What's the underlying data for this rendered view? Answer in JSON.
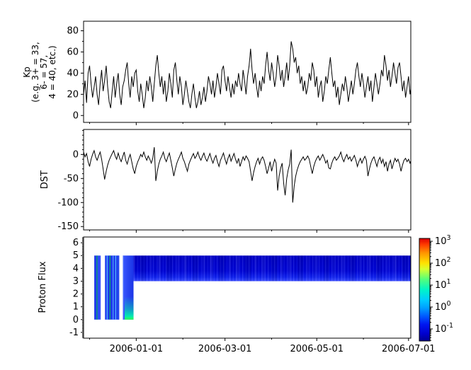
{
  "figure": {
    "background": "#ffffff",
    "frame_color": "#000000",
    "series_color": "#000000",
    "tick_color": "#000000"
  },
  "chart_data": [
    {
      "id": "kp",
      "type": "line",
      "ylabel_lines": [
        "Kp",
        "(e.g. 3+ = 33,",
        "6- = 57,",
        "4 = 40, etc.)"
      ],
      "ylim": [
        -6.5,
        89
      ],
      "yticks": [
        0,
        20,
        40,
        60,
        80
      ],
      "y_minor_step": 10,
      "x_start_date": "2005-11-27",
      "x_domain_days": 217.5,
      "x_major_ticks": [
        {
          "t": 35,
          "label": "2006-01-01"
        },
        {
          "t": 94,
          "label": "2006-03-01"
        },
        {
          "t": 155,
          "label": "2006-05-01"
        },
        {
          "t": 216,
          "label": "2006-07-01"
        }
      ],
      "x_minor_ticks": [
        4,
        66,
        125,
        186
      ],
      "x_labels_visible": false,
      "dt_days": 1,
      "values": [
        20,
        33,
        12,
        40,
        47,
        30,
        17,
        27,
        37,
        20,
        10,
        30,
        43,
        23,
        33,
        47,
        27,
        13,
        7,
        23,
        37,
        17,
        30,
        40,
        20,
        10,
        27,
        33,
        43,
        50,
        30,
        17,
        37,
        27,
        40,
        43,
        23,
        13,
        30,
        20,
        7,
        17,
        33,
        23,
        37,
        27,
        13,
        30,
        47,
        57,
        40,
        27,
        37,
        20,
        33,
        13,
        23,
        40,
        30,
        17,
        43,
        50,
        33,
        20,
        37,
        27,
        10,
        20,
        33,
        23,
        13,
        7,
        20,
        30,
        17,
        7,
        13,
        23,
        10,
        17,
        27,
        13,
        23,
        37,
        30,
        20,
        33,
        17,
        27,
        40,
        30,
        20,
        43,
        47,
        33,
        23,
        37,
        27,
        17,
        30,
        20,
        33,
        27,
        40,
        30,
        23,
        43,
        33,
        20,
        37,
        47,
        63,
        43,
        30,
        40,
        27,
        17,
        33,
        23,
        37,
        30,
        47,
        60,
        43,
        33,
        50,
        40,
        27,
        37,
        57,
        47,
        33,
        43,
        27,
        37,
        50,
        33,
        47,
        70,
        63,
        50,
        55,
        40,
        47,
        30,
        37,
        23,
        33,
        20,
        27,
        40,
        33,
        50,
        43,
        27,
        37,
        17,
        27,
        33,
        13,
        23,
        37,
        30,
        43,
        55,
        40,
        27,
        33,
        17,
        27,
        10,
        20,
        30,
        23,
        37,
        27,
        13,
        23,
        33,
        20,
        30,
        43,
        50,
        37,
        27,
        40,
        30,
        17,
        27,
        37,
        23,
        33,
        13,
        27,
        40,
        30,
        20,
        30,
        43,
        37,
        57,
        47,
        33,
        43,
        27,
        37,
        50,
        40,
        30,
        45,
        50,
        37,
        23,
        33,
        17,
        27,
        37,
        20,
        30,
        10
      ]
    },
    {
      "id": "dst",
      "type": "line",
      "ylabel": "DST",
      "ylim": [
        -157,
        52
      ],
      "yticks": [
        0,
        -50,
        -100,
        -150
      ],
      "y_minor_step": 10,
      "x_start_date": "2005-11-27",
      "x_domain_days": 217.5,
      "x_major_ticks": [
        {
          "t": 35,
          "label": "2006-01-01"
        },
        {
          "t": 94,
          "label": "2006-03-01"
        },
        {
          "t": 155,
          "label": "2006-05-01"
        },
        {
          "t": 216,
          "label": "2006-07-01"
        }
      ],
      "x_minor_ticks": [
        4,
        66,
        125,
        186
      ],
      "x_labels_visible": false,
      "dt_days": 1,
      "values": [
        5,
        -5,
        2,
        -15,
        -25,
        -10,
        0,
        8,
        -5,
        -12,
        -3,
        5,
        -10,
        -30,
        -52,
        -35,
        -22,
        -12,
        -5,
        2,
        8,
        -3,
        -10,
        3,
        -8,
        -15,
        -5,
        5,
        -12,
        -20,
        -8,
        0,
        -15,
        -30,
        -40,
        -25,
        -15,
        -8,
        0,
        -5,
        5,
        -5,
        -12,
        -3,
        -10,
        -18,
        -8,
        15,
        -55,
        -35,
        -20,
        -10,
        -3,
        5,
        -8,
        -15,
        -5,
        3,
        -12,
        -28,
        -45,
        -30,
        -18,
        -10,
        -3,
        5,
        -8,
        -15,
        -25,
        -35,
        -20,
        -12,
        -5,
        2,
        -8,
        -3,
        5,
        -6,
        -12,
        -4,
        3,
        -8,
        -14,
        -6,
        2,
        -10,
        -18,
        -8,
        -2,
        -15,
        -25,
        -12,
        -5,
        3,
        -10,
        -20,
        -8,
        0,
        -14,
        -6,
        2,
        -10,
        -18,
        -8,
        -25,
        -15,
        -5,
        -12,
        -3,
        -8,
        -15,
        -35,
        -55,
        -38,
        -25,
        -15,
        -8,
        -20,
        -10,
        -5,
        -12,
        -25,
        -40,
        -28,
        -15,
        -35,
        -22,
        -10,
        -18,
        -75,
        -45,
        -28,
        -18,
        -60,
        -85,
        -50,
        -32,
        -20,
        10,
        -100,
        -65,
        -45,
        -32,
        -22,
        -15,
        -10,
        -5,
        -12,
        -8,
        -3,
        -10,
        -25,
        -40,
        -25,
        -15,
        -8,
        -3,
        -12,
        -6,
        0,
        -8,
        -18,
        -12,
        -28,
        -30,
        -18,
        -10,
        -5,
        -12,
        -8,
        -3,
        5,
        -8,
        -15,
        -6,
        0,
        -10,
        -5,
        -14,
        -8,
        -2,
        -12,
        -25,
        -15,
        -8,
        -18,
        -10,
        -4,
        -12,
        -45,
        -30,
        -18,
        -10,
        -5,
        -15,
        -25,
        -12,
        -6,
        -18,
        -10,
        -25,
        -15,
        -35,
        -20,
        -12,
        -30,
        -18,
        -8,
        -15,
        -10,
        -20,
        -35,
        -22,
        -12,
        -8,
        -15,
        -10,
        -18,
        -8,
        -12
      ]
    },
    {
      "id": "flux",
      "type": "heatmap",
      "ylabel": "Proton Flux",
      "ylim": [
        -1.45,
        6.45
      ],
      "yticks": [
        -1,
        0,
        1,
        2,
        3,
        4,
        5,
        6
      ],
      "y_minor_step": 0.1,
      "x_start_date": "2005-11-27",
      "x_domain_days": 217.5,
      "x_major_ticks": [
        {
          "t": 35,
          "label": "2006-01-01"
        },
        {
          "t": 94,
          "label": "2006-03-01"
        },
        {
          "t": 155,
          "label": "2006-05-01"
        },
        {
          "t": 216,
          "label": "2006-07-01"
        }
      ],
      "x_minor_ticks": [
        4,
        66,
        125,
        186
      ],
      "x_labels_visible": true,
      "segments": [
        {
          "name": "band-1",
          "t0": 7.1,
          "t1": 11.4,
          "y0": 0,
          "y1": 5,
          "base": {
            "dir": "h",
            "stops": [
              [
                "0",
                "#1b35e8"
              ],
              [
                "0.55",
                "#2a45f5"
              ],
              [
                "1",
                "#3a55ff"
              ]
            ]
          },
          "lines": [
            {
              "t": 8.9,
              "w": 0.45,
              "color": "#00c838"
            }
          ]
        },
        {
          "name": "band-2",
          "t0": 14.2,
          "t1": 23.7,
          "y0": 0,
          "y1": 5,
          "base": {
            "dir": "h",
            "stops": [
              [
                "0",
                "#2a45f0"
              ],
              [
                "0.3",
                "#1b35e8"
              ],
              [
                "0.7",
                "#2440ee"
              ],
              [
                "1",
                "#1b30e0"
              ]
            ]
          },
          "lines": [
            {
              "t": 15.7,
              "w": 0.5,
              "color": "#59c8ff"
            },
            {
              "t": 17.5,
              "w": 0.4,
              "color": "#00c838"
            },
            {
              "t": 19.6,
              "w": 0.55,
              "color": "#4f9bff"
            },
            {
              "t": 21.4,
              "w": 0.5,
              "color": "#57c3ff"
            },
            {
              "t": 22.9,
              "w": 0.35,
              "color": "#2e62ff"
            }
          ]
        },
        {
          "name": "band-3",
          "t0": 26.1,
          "t1": 33.2,
          "y0": 0,
          "y1": 5,
          "base": {
            "dir": "h",
            "stops": [
              [
                "0",
                "#3a58ff"
              ],
              [
                "0.5",
                "#2a45f0"
              ],
              [
                "1",
                "#1b35e8"
              ]
            ]
          },
          "bottom_glow": {
            "t0": 27.3,
            "t1": 33.2,
            "y_top": 1.8,
            "stops": [
              [
                "0",
                "rgba(0,230,170,0)"
              ],
              [
                "0.55",
                "rgba(0,230,170,0.55)"
              ],
              [
                "0.85",
                "#00e8b4"
              ],
              [
                "1",
                "#2cff50"
              ]
            ]
          },
          "lines": [
            {
              "t": 26.4,
              "w": 0.4,
              "color": "#5577ff"
            }
          ]
        },
        {
          "name": "main-band",
          "t0": 33.2,
          "t1": 217.5,
          "y0": 3,
          "y1": 5,
          "base": {
            "dir": "v",
            "stops": [
              [
                "0",
                "#0000c4"
              ],
              [
                "0.6",
                "#0005d6"
              ],
              [
                "0.85",
                "#1022ee"
              ],
              [
                "1",
                "#3a4cff"
              ]
            ]
          },
          "striations": true
        }
      ],
      "colorbar": {
        "top_log": 3.13,
        "bottom_log": -1.55,
        "tick_exponents": [
          3,
          2,
          1,
          0,
          -1
        ],
        "gradient": [
          [
            "0",
            "#dc0000"
          ],
          [
            "0.06",
            "#ff3b00"
          ],
          [
            "0.14",
            "#ff9400"
          ],
          [
            "0.24",
            "#ffe100"
          ],
          [
            "0.30",
            "#d8ff2e"
          ],
          [
            "0.40",
            "#52ff7c"
          ],
          [
            "0.50",
            "#00f5c8"
          ],
          [
            "0.60",
            "#00ccff"
          ],
          [
            "0.68",
            "#009dff"
          ],
          [
            "0.76",
            "#0058ff"
          ],
          [
            "0.84",
            "#0016f0"
          ],
          [
            "0.93",
            "#0000cd"
          ],
          [
            "1",
            "#000091"
          ]
        ]
      }
    }
  ]
}
